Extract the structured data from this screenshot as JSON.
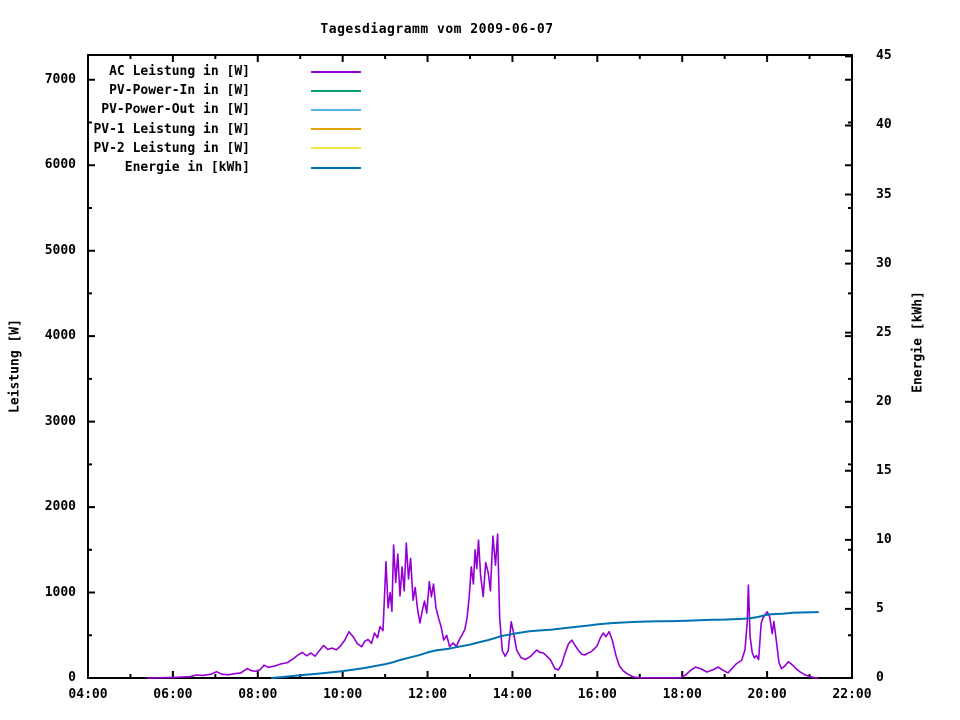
{
  "chart_data": {
    "type": "line",
    "title": "Tagesdiagramm vom 2009-06-07",
    "ylabel_left": "Leistung [W]",
    "ylabel_right": "Energie [kWh]",
    "grid": false,
    "legend_position": "top-left-inside",
    "x_axis": {
      "range": [
        4,
        22
      ],
      "tick_hours": [
        4,
        6,
        8,
        10,
        12,
        14,
        16,
        18,
        20,
        22
      ],
      "tick_labels": [
        "04:00",
        "06:00",
        "08:00",
        "10:00",
        "12:00",
        "14:00",
        "16:00",
        "18:00",
        "20:00",
        "22:00"
      ],
      "minor_step_hours": 1
    },
    "y_left": {
      "ticks": [
        0,
        1000,
        2000,
        3000,
        4000,
        5000,
        6000,
        7000
      ],
      "tick_labels": [
        "0",
        "1000",
        "2000",
        "3000",
        "4000",
        "5000",
        "6000",
        "7000"
      ],
      "minor_step": 500,
      "axis_max": 7290
    },
    "y_right": {
      "ticks": [
        0,
        5,
        10,
        15,
        20,
        25,
        30,
        35,
        40,
        45
      ],
      "tick_labels": [
        "0",
        "5",
        "10",
        "15",
        "20",
        "25",
        "30",
        "35",
        "40",
        "45"
      ],
      "axis_max": 45.1
    },
    "series": [
      {
        "label": "AC Leistung in [W]",
        "color": "#9400d3",
        "axis": "left",
        "visible_in_plot": true,
        "points": [
          [
            5.4,
            0
          ],
          [
            5.8,
            4
          ],
          [
            6.1,
            8
          ],
          [
            6.4,
            15
          ],
          [
            6.56,
            35
          ],
          [
            6.7,
            30
          ],
          [
            6.9,
            45
          ],
          [
            7.03,
            74
          ],
          [
            7.15,
            45
          ],
          [
            7.3,
            38
          ],
          [
            7.45,
            50
          ],
          [
            7.6,
            60
          ],
          [
            7.75,
            110
          ],
          [
            7.85,
            85
          ],
          [
            7.95,
            78
          ],
          [
            8.05,
            95
          ],
          [
            8.15,
            150
          ],
          [
            8.25,
            125
          ],
          [
            8.4,
            140
          ],
          [
            8.55,
            165
          ],
          [
            8.7,
            180
          ],
          [
            8.85,
            230
          ],
          [
            8.95,
            270
          ],
          [
            9.05,
            300
          ],
          [
            9.15,
            260
          ],
          [
            9.25,
            292
          ],
          [
            9.35,
            255
          ],
          [
            9.45,
            320
          ],
          [
            9.55,
            380
          ],
          [
            9.65,
            335
          ],
          [
            9.75,
            350
          ],
          [
            9.85,
            330
          ],
          [
            9.95,
            375
          ],
          [
            10.05,
            444
          ],
          [
            10.15,
            542
          ],
          [
            10.25,
            480
          ],
          [
            10.35,
            400
          ],
          [
            10.45,
            366
          ],
          [
            10.52,
            430
          ],
          [
            10.6,
            450
          ],
          [
            10.68,
            405
          ],
          [
            10.75,
            526
          ],
          [
            10.82,
            470
          ],
          [
            10.88,
            600
          ],
          [
            10.95,
            555
          ],
          [
            11.02,
            1361
          ],
          [
            11.07,
            820
          ],
          [
            11.12,
            1000
          ],
          [
            11.16,
            780
          ],
          [
            11.2,
            1556
          ],
          [
            11.25,
            1120
          ],
          [
            11.3,
            1450
          ],
          [
            11.35,
            960
          ],
          [
            11.4,
            1300
          ],
          [
            11.45,
            1020
          ],
          [
            11.5,
            1579
          ],
          [
            11.55,
            1160
          ],
          [
            11.6,
            1400
          ],
          [
            11.66,
            910
          ],
          [
            11.71,
            1060
          ],
          [
            11.76,
            820
          ],
          [
            11.82,
            643
          ],
          [
            11.88,
            800
          ],
          [
            11.93,
            900
          ],
          [
            11.98,
            760
          ],
          [
            12.04,
            1127
          ],
          [
            12.09,
            950
          ],
          [
            12.14,
            1100
          ],
          [
            12.2,
            820
          ],
          [
            12.26,
            700
          ],
          [
            12.32,
            600
          ],
          [
            12.38,
            444
          ],
          [
            12.45,
            500
          ],
          [
            12.52,
            366
          ],
          [
            12.6,
            410
          ],
          [
            12.68,
            370
          ],
          [
            12.75,
            450
          ],
          [
            12.82,
            510
          ],
          [
            12.88,
            570
          ],
          [
            12.93,
            700
          ],
          [
            12.98,
            950
          ],
          [
            13.03,
            1300
          ],
          [
            13.08,
            1100
          ],
          [
            13.12,
            1500
          ],
          [
            13.16,
            1280
          ],
          [
            13.2,
            1615
          ],
          [
            13.25,
            1200
          ],
          [
            13.31,
            951
          ],
          [
            13.37,
            1350
          ],
          [
            13.43,
            1228
          ],
          [
            13.48,
            1020
          ],
          [
            13.54,
            1661
          ],
          [
            13.6,
            1320
          ],
          [
            13.65,
            1684
          ],
          [
            13.7,
            700
          ],
          [
            13.76,
            320
          ],
          [
            13.83,
            255
          ],
          [
            13.9,
            320
          ],
          [
            13.97,
            658
          ],
          [
            14.03,
            520
          ],
          [
            14.1,
            327
          ],
          [
            14.2,
            240
          ],
          [
            14.3,
            215
          ],
          [
            14.42,
            250
          ],
          [
            14.5,
            290
          ],
          [
            14.57,
            327
          ],
          [
            14.65,
            300
          ],
          [
            14.73,
            292
          ],
          [
            14.82,
            250
          ],
          [
            14.9,
            210
          ],
          [
            15.0,
            110
          ],
          [
            15.08,
            94
          ],
          [
            15.16,
            160
          ],
          [
            15.24,
            292
          ],
          [
            15.32,
            400
          ],
          [
            15.4,
            444
          ],
          [
            15.47,
            386
          ],
          [
            15.55,
            327
          ],
          [
            15.63,
            280
          ],
          [
            15.7,
            269
          ],
          [
            15.78,
            290
          ],
          [
            15.85,
            307
          ],
          [
            15.93,
            340
          ],
          [
            16.0,
            380
          ],
          [
            16.07,
            468
          ],
          [
            16.14,
            526
          ],
          [
            16.2,
            483
          ],
          [
            16.28,
            542
          ],
          [
            16.36,
            430
          ],
          [
            16.44,
            260
          ],
          [
            16.52,
            140
          ],
          [
            16.62,
            80
          ],
          [
            16.72,
            45
          ],
          [
            16.85,
            12
          ],
          [
            17.0,
            2
          ],
          [
            17.95,
            2
          ],
          [
            18.08,
            35
          ],
          [
            18.2,
            90
          ],
          [
            18.32,
            128
          ],
          [
            18.45,
            105
          ],
          [
            18.58,
            70
          ],
          [
            18.72,
            95
          ],
          [
            18.85,
            128
          ],
          [
            18.95,
            95
          ],
          [
            19.08,
            60
          ],
          [
            19.18,
            115
          ],
          [
            19.28,
            170
          ],
          [
            19.4,
            205
          ],
          [
            19.48,
            330
          ],
          [
            19.53,
            650
          ],
          [
            19.56,
            1088
          ],
          [
            19.6,
            480
          ],
          [
            19.65,
            292
          ],
          [
            19.7,
            235
          ],
          [
            19.75,
            262
          ],
          [
            19.8,
            215
          ],
          [
            19.86,
            640
          ],
          [
            19.9,
            700
          ],
          [
            19.95,
            737
          ],
          [
            20.0,
            775
          ],
          [
            20.06,
            717
          ],
          [
            20.12,
            520
          ],
          [
            20.16,
            660
          ],
          [
            20.22,
            430
          ],
          [
            20.28,
            180
          ],
          [
            20.34,
            110
          ],
          [
            20.42,
            140
          ],
          [
            20.5,
            190
          ],
          [
            20.58,
            160
          ],
          [
            20.68,
            110
          ],
          [
            20.78,
            70
          ],
          [
            20.88,
            40
          ],
          [
            21.0,
            18
          ],
          [
            21.12,
            4
          ],
          [
            21.2,
            0
          ]
        ]
      },
      {
        "label": "PV-Power-In in [W]",
        "color": "#009e73",
        "axis": "left",
        "visible_in_plot": false,
        "points": []
      },
      {
        "label": "PV-Power-Out in [W]",
        "color": "#56b4e9",
        "axis": "left",
        "visible_in_plot": false,
        "points": []
      },
      {
        "label": "PV-1 Leistung in [W]",
        "color": "#e69f00",
        "axis": "left",
        "visible_in_plot": false,
        "points": []
      },
      {
        "label": "PV-2 Leistung in [W]",
        "color": "#f0e442",
        "axis": "left",
        "visible_in_plot": false,
        "points": []
      },
      {
        "label": "Energie in [kWh]",
        "color": "#0072b2",
        "axis": "right",
        "visible_in_plot": true,
        "points": [
          [
            8.33,
            0
          ],
          [
            8.6,
            0.07
          ],
          [
            9.0,
            0.2
          ],
          [
            9.5,
            0.33
          ],
          [
            10.0,
            0.5
          ],
          [
            10.5,
            0.72
          ],
          [
            11.0,
            1.0
          ],
          [
            11.2,
            1.15
          ],
          [
            11.35,
            1.3
          ],
          [
            11.6,
            1.5
          ],
          [
            11.8,
            1.65
          ],
          [
            12.0,
            1.85
          ],
          [
            12.2,
            2.0
          ],
          [
            12.5,
            2.12
          ],
          [
            12.8,
            2.3
          ],
          [
            13.0,
            2.42
          ],
          [
            13.2,
            2.58
          ],
          [
            13.4,
            2.72
          ],
          [
            13.6,
            2.9
          ],
          [
            13.71,
            3.02
          ],
          [
            13.9,
            3.13
          ],
          [
            14.1,
            3.24
          ],
          [
            14.4,
            3.38
          ],
          [
            14.7,
            3.45
          ],
          [
            14.9,
            3.5
          ],
          [
            15.2,
            3.6
          ],
          [
            15.5,
            3.7
          ],
          [
            15.8,
            3.8
          ],
          [
            16.0,
            3.88
          ],
          [
            16.3,
            3.96
          ],
          [
            16.6,
            4.02
          ],
          [
            16.9,
            4.06
          ],
          [
            17.3,
            4.1
          ],
          [
            17.8,
            4.12
          ],
          [
            18.1,
            4.15
          ],
          [
            18.4,
            4.18
          ],
          [
            18.7,
            4.21
          ],
          [
            19.0,
            4.23
          ],
          [
            19.4,
            4.28
          ],
          [
            19.6,
            4.33
          ],
          [
            19.8,
            4.42
          ],
          [
            19.95,
            4.55
          ],
          [
            20.1,
            4.62
          ],
          [
            20.4,
            4.66
          ],
          [
            20.6,
            4.72
          ],
          [
            20.9,
            4.75
          ],
          [
            21.2,
            4.77
          ]
        ]
      }
    ]
  }
}
